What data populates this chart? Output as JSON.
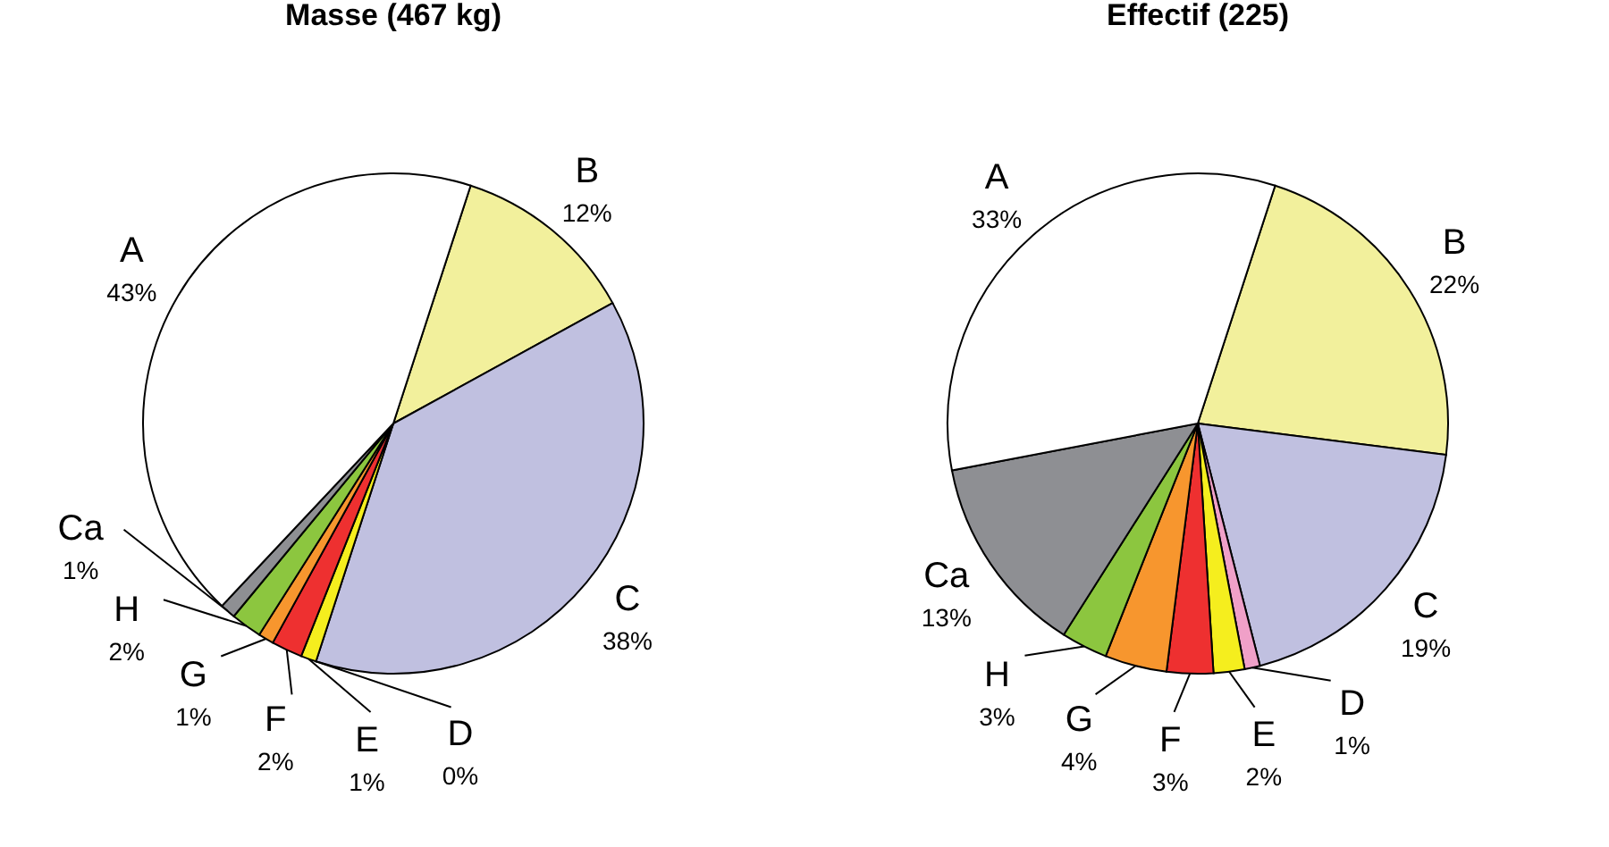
{
  "chart_data": [
    {
      "type": "pie",
      "title": "Masse (467 kg)",
      "categories": [
        "B",
        "C",
        "D",
        "E",
        "F",
        "G",
        "H",
        "Ca",
        "A"
      ],
      "values": [
        12,
        38,
        0,
        1,
        2,
        1,
        2,
        1,
        43
      ],
      "colors": [
        "#f2f09c",
        "#c0c0e0",
        "#f0a0c8",
        "#f5ee1e",
        "#ee3030",
        "#f7962e",
        "#8cc63f",
        "#8e8f93",
        "#ffffff"
      ],
      "value_labels": [
        "12%",
        "38%",
        "0%",
        "1%",
        "2%",
        "1%",
        "2%",
        "1%",
        "43%"
      ]
    },
    {
      "type": "pie",
      "title": "Effectif (225)",
      "categories": [
        "B",
        "C",
        "D",
        "E",
        "F",
        "G",
        "H",
        "Ca",
        "A"
      ],
      "values": [
        22,
        19,
        1,
        2,
        3,
        4,
        3,
        13,
        33
      ],
      "colors": [
        "#f2f09c",
        "#c0c0e0",
        "#f0a0c8",
        "#f5ee1e",
        "#ee3030",
        "#f7962e",
        "#8cc63f",
        "#8e8f93",
        "#ffffff"
      ],
      "value_labels": [
        "22%",
        "19%",
        "1%",
        "2%",
        "3%",
        "4%",
        "3%",
        "13%",
        "33%"
      ]
    }
  ]
}
